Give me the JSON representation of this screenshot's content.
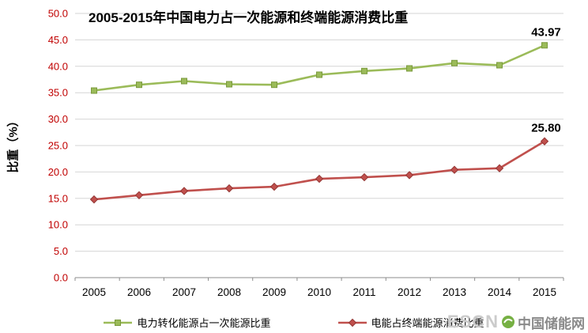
{
  "chart": {
    "title": "2005-2015年中国电力占一次能源和终端能源消费比重",
    "y_axis_title": "比重（%）"
  },
  "chart_data": {
    "type": "line",
    "categories": [
      "2005",
      "2006",
      "2007",
      "2008",
      "2009",
      "2010",
      "2011",
      "2012",
      "2013",
      "2014",
      "2015"
    ],
    "series": [
      {
        "name": "电力转化能源占一次能源比重",
        "color": "#9BBB59",
        "marker_border": "#7A9A3D",
        "marker": "square",
        "values": [
          35.4,
          36.5,
          37.2,
          36.6,
          36.5,
          38.4,
          39.1,
          39.6,
          40.6,
          40.2,
          43.97
        ],
        "end_label": "43.97"
      },
      {
        "name": "电能占终端能源消费比重",
        "color": "#C0504D",
        "marker_border": "#943634",
        "marker": "diamond",
        "values": [
          14.8,
          15.6,
          16.4,
          16.9,
          17.2,
          18.7,
          19.0,
          19.4,
          20.4,
          20.7,
          25.8
        ],
        "end_label": "25.80"
      }
    ],
    "ylim": [
      0,
      50
    ],
    "y_tick_step": 5,
    "y_tick_labels": [
      "0.0",
      "5.0",
      "10.0",
      "15.0",
      "20.0",
      "25.0",
      "30.0",
      "35.0",
      "40.0",
      "45.0",
      "50.0"
    ],
    "grid": true,
    "grid_color": "#D6D6D6",
    "axis_color": "#8C8C8C",
    "tick_label_color": "#C00000",
    "x_tick_label_color": "#000000",
    "legend_position": "bottom"
  },
  "watermark": {
    "escn": "ESCN",
    "site": "中国储能网"
  }
}
